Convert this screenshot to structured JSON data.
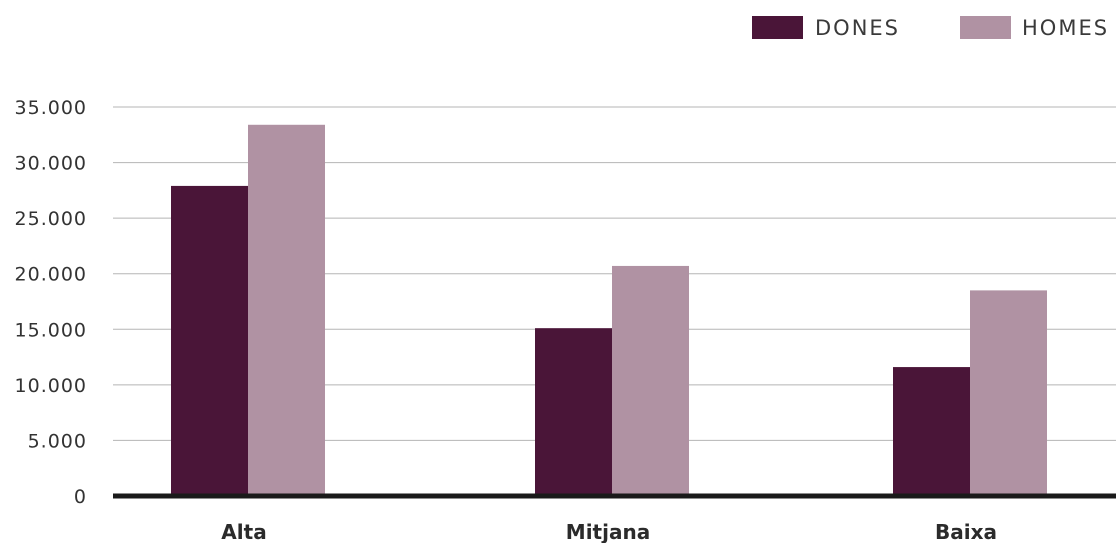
{
  "chart_data": {
    "type": "bar",
    "categories": [
      "Alta",
      "Mitjana",
      "Baixa"
    ],
    "series": [
      {
        "name": "DONES",
        "color": "#4a1538",
        "values": [
          27900,
          15100,
          11600
        ]
      },
      {
        "name": "HOMES",
        "color": "#b092a3",
        "values": [
          33400,
          20700,
          18500
        ]
      }
    ],
    "y_ticks": [
      "0",
      "5.000",
      "10.000",
      "15.000",
      "20.000",
      "25.000",
      "30.000",
      "35.000"
    ],
    "ylim": [
      0,
      35000
    ],
    "grid": true,
    "legend_position": "top-right",
    "axis_color": "#1a1a1a",
    "grid_color": "#b5b5b5"
  }
}
